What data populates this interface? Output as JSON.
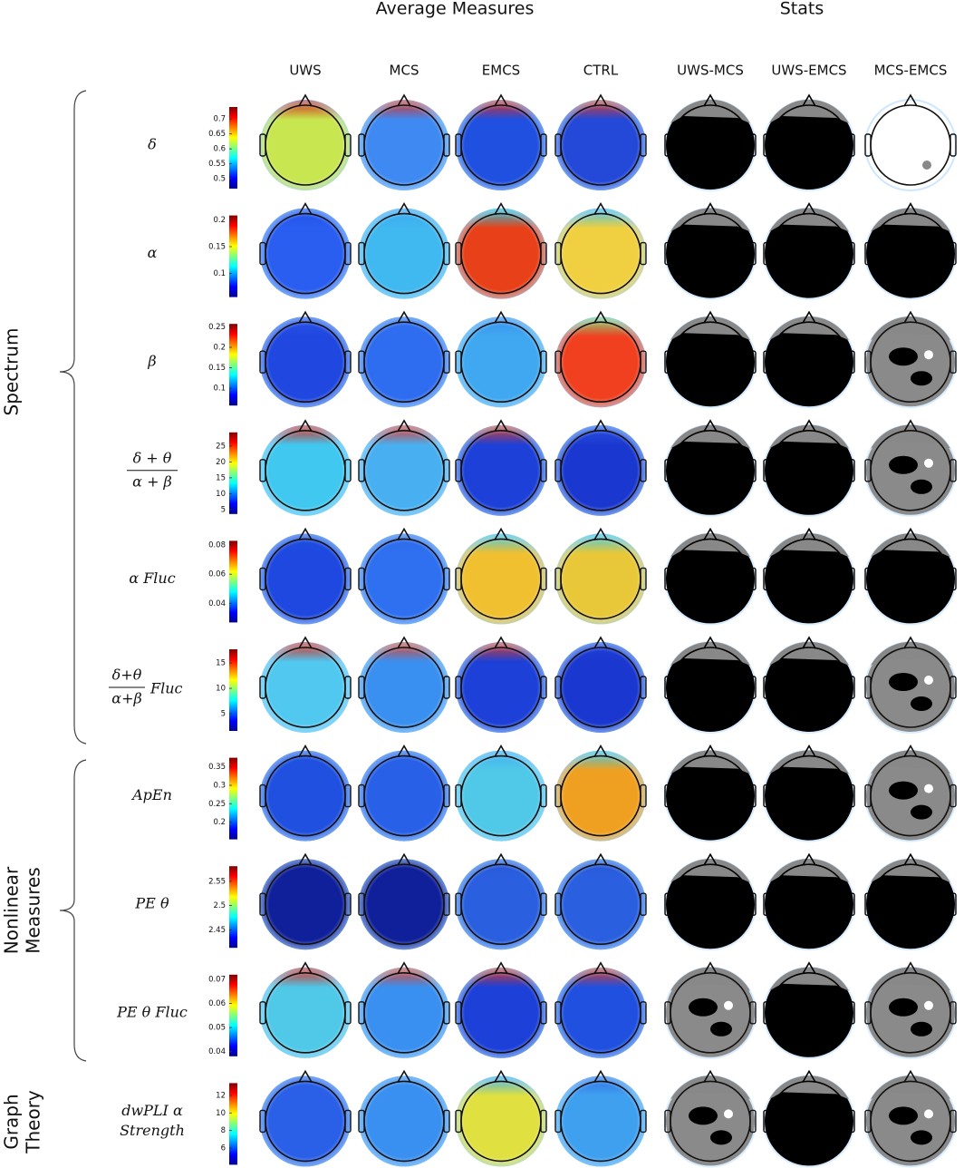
{
  "header": {
    "average": "Average Measures",
    "stats": "Stats"
  },
  "columns": [
    "UWS",
    "MCS",
    "EMCS",
    "CTRL",
    "UWS-MCS",
    "UWS-EMCS",
    "MCS-EMCS"
  ],
  "groups": [
    {
      "lines": [
        "Spectrum"
      ]
    },
    {
      "lines": [
        "Nonlinear",
        "Measures"
      ]
    },
    {
      "lines": [
        "Graph",
        "Theory"
      ]
    }
  ],
  "rows": [
    {
      "lines": [
        "δ"
      ],
      "clim": [
        0.467,
        0.74
      ],
      "ticks": [
        0.7,
        0.65,
        0.6,
        0.55,
        0.5
      ]
    },
    {
      "lines": [
        "α"
      ],
      "clim": [
        0.056,
        0.208
      ],
      "ticks": [
        0.2,
        0.15,
        0.1
      ]
    },
    {
      "lines": [
        "β"
      ],
      "clim": [
        0.058,
        0.257
      ],
      "ticks": [
        0.25,
        0.2,
        0.15,
        0.1
      ]
    },
    {
      "numerator": "δ + θ",
      "denominator": "α + β",
      "clim": [
        3.6,
        29.3
      ],
      "ticks": [
        25,
        20,
        15,
        10,
        5
      ]
    },
    {
      "lines": [
        "α Fluc"
      ],
      "clim": [
        0.0269,
        0.0829
      ],
      "ticks": [
        0.08,
        0.06,
        0.04
      ]
    },
    {
      "numerator": "δ+θ",
      "denominator": "α+β",
      "suffix": "Fluc",
      "clim": [
        1.6,
        17.7
      ],
      "ticks": [
        15,
        10,
        5
      ]
    },
    {
      "lines": [
        "ApEn"
      ],
      "clim": [
        0.153,
        0.375
      ],
      "ticks": [
        0.35,
        0.3,
        0.25,
        0.2
      ]
    },
    {
      "lines": [
        "PE θ"
      ],
      "clim": [
        2.413,
        2.581
      ],
      "ticks": [
        2.55,
        2.5,
        2.45
      ]
    },
    {
      "lines": [
        "PE θ Fluc"
      ],
      "clim": [
        0.0381,
        0.0719
      ],
      "ticks": [
        0.07,
        0.06,
        0.05,
        0.04
      ]
    },
    {
      "lines": [
        "dwPLI α",
        "Strength"
      ],
      "clim": [
        4.1,
        13.4
      ],
      "ticks": [
        12,
        10,
        8,
        6
      ]
    }
  ]
}
